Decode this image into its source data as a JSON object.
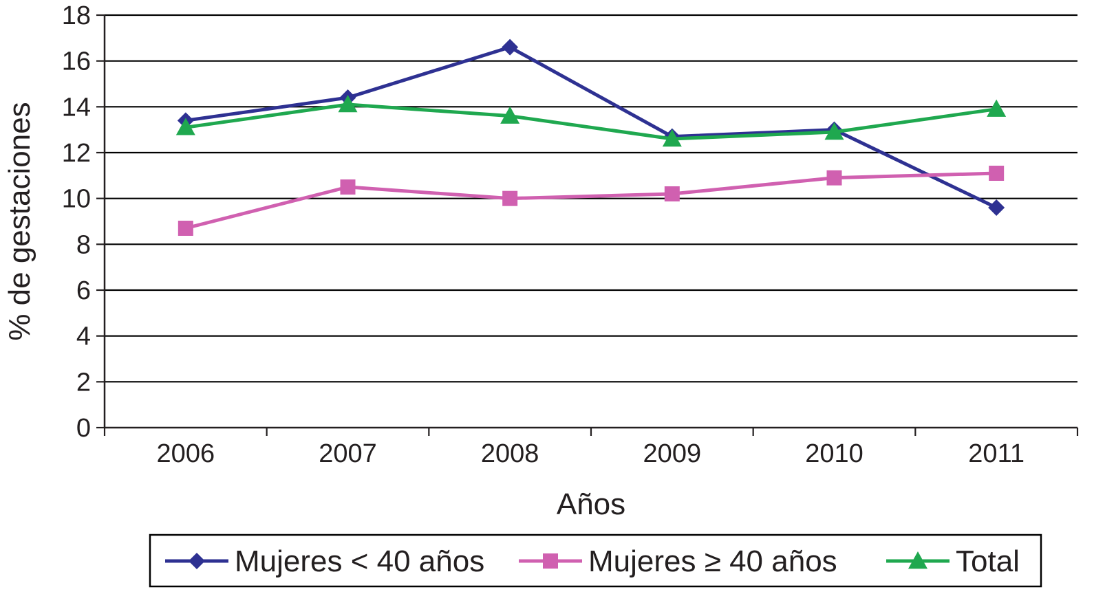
{
  "chart_data": {
    "type": "line",
    "categories": [
      "2006",
      "2007",
      "2008",
      "2009",
      "2010",
      "2011"
    ],
    "series": [
      {
        "name": "Mujeres < 40 años",
        "values": [
          13.4,
          14.4,
          16.6,
          12.7,
          13.0,
          9.6
        ],
        "color": "#2e3192",
        "marker": "diamond"
      },
      {
        "name": "Mujeres ≥ 40 años",
        "values": [
          8.7,
          10.5,
          10.0,
          10.2,
          10.9,
          11.1
        ],
        "color": "#d060b0",
        "marker": "square"
      },
      {
        "name": "Total",
        "values": [
          13.1,
          14.1,
          13.6,
          12.6,
          12.9,
          13.9
        ],
        "color": "#1fa84f",
        "marker": "triangle"
      }
    ],
    "title": "",
    "xlabel": "Años",
    "ylabel": "% de gestaciones",
    "ylim": [
      0,
      18
    ],
    "yticks": [
      0,
      2,
      4,
      6,
      8,
      10,
      12,
      14,
      16,
      18
    ],
    "grid": true,
    "legend_position": "bottom"
  }
}
